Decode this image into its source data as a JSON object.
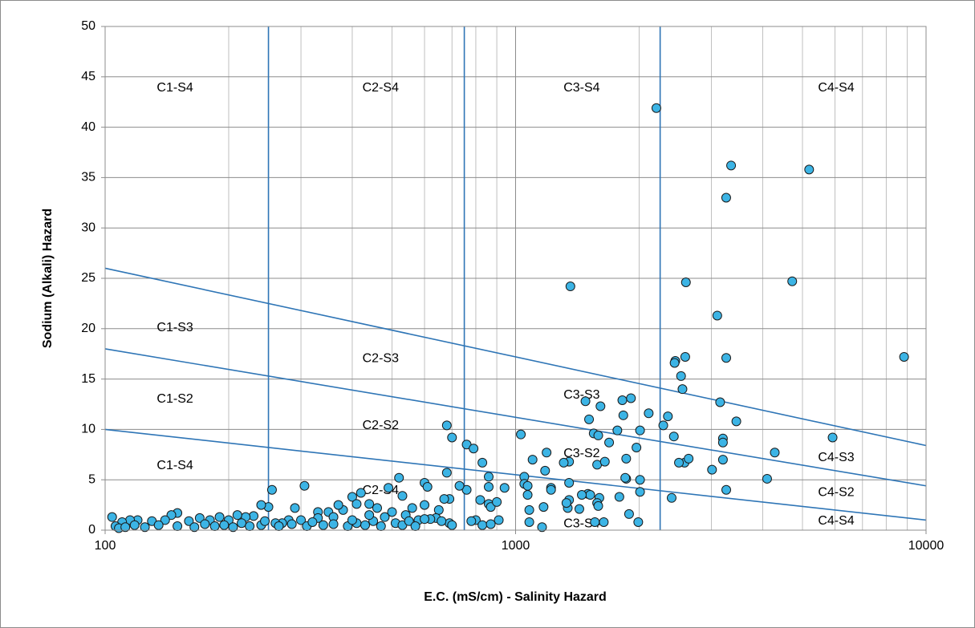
{
  "chart_data": {
    "type": "scatter",
    "x_label": "E.C. (mS/cm) - Salinity Hazard",
    "y_label": "Sodium (Alkali) Hazard",
    "xscale": "log",
    "xlim": [
      100,
      10000
    ],
    "ylim": [
      0,
      50
    ],
    "xticks": [
      100,
      1000,
      10000
    ],
    "x_minor_ticks": [
      200,
      300,
      400,
      500,
      600,
      700,
      800,
      900,
      2000,
      3000,
      4000,
      5000,
      6000,
      7000,
      8000,
      9000
    ],
    "yticks": [
      0,
      5,
      10,
      15,
      20,
      25,
      30,
      35,
      40,
      45,
      50
    ],
    "grid": true,
    "color": "#3cb4e5",
    "line_color": "#2e75b6",
    "vlines": [
      250,
      750,
      2250
    ],
    "boundary_lines": [
      {
        "x": [
          100,
          10000
        ],
        "values": [
          26,
          8.4
        ]
      },
      {
        "x": [
          100,
          10000
        ],
        "values": [
          18,
          4.4
        ]
      },
      {
        "x": [
          100,
          10000
        ],
        "values": [
          10,
          1
        ]
      }
    ],
    "region_labels": [
      {
        "text": "C1-S4",
        "x": 148,
        "y": 43.9
      },
      {
        "text": "C2-S4",
        "x": 469,
        "y": 43.9
      },
      {
        "text": "C3-S4",
        "x": 1449,
        "y": 43.9
      },
      {
        "text": "C4-S4",
        "x": 6040,
        "y": 43.9
      },
      {
        "text": "C1-S3",
        "x": 148,
        "y": 20.1
      },
      {
        "text": "C2-S3",
        "x": 469,
        "y": 17.0
      },
      {
        "text": "C3-S3",
        "x": 1449,
        "y": 13.4
      },
      {
        "text": "C1-S2",
        "x": 148,
        "y": 13.0
      },
      {
        "text": "C2-S2",
        "x": 469,
        "y": 10.35
      },
      {
        "text": "C3-S2",
        "x": 1449,
        "y": 7.6
      },
      {
        "text": "C1-S4",
        "x": 148,
        "y": 6.4
      },
      {
        "text": "C2-S4",
        "x": 469,
        "y": 3.9
      },
      {
        "text": "C3-S4",
        "x": 1449,
        "y": 0.6
      },
      {
        "text": "C4-S3",
        "x": 6040,
        "y": 7.2
      },
      {
        "text": "C4-S2",
        "x": 6040,
        "y": 3.7
      },
      {
        "text": "C4-S4",
        "x": 6040,
        "y": 0.9
      }
    ],
    "x": [
      2203,
      3350,
      5190,
      3259,
      1360,
      2600,
      4720,
      3100,
      3260,
      2590,
      8840,
      2450,
      2440,
      2530,
      2550,
      1480,
      1610,
      1910,
      1820,
      2110,
      2350,
      3150,
      1510,
      2290,
      3450,
      1830,
      1770,
      1550,
      1590,
      2010,
      2430,
      3200,
      3200,
      5920,
      1690,
      1970,
      1030,
      680,
      700,
      760,
      790,
      830,
      1860,
      2580,
      2500,
      2640,
      3200,
      4280,
      1350,
      1310,
      1580,
      1650,
      1190,
      1100,
      680,
      1050,
      3010,
      1860,
      1850,
      2010,
      4100,
      3260,
      2010,
      2400,
      1790,
      1180,
      1220,
      1350,
      1050,
      1070,
      860,
      860,
      940,
      760,
      730,
      1500,
      1520,
      1600,
      1580,
      1590,
      1350,
      1340,
      1430,
      1330,
      1450,
      1070,
      1080,
      1080,
      1170,
      1220,
      910,
      860,
      870,
      820,
      900,
      800,
      780,
      830,
      1160,
      1560,
      1640,
      1890,
      1990,
      870,
      600,
      610,
      690,
      670,
      650,
      640,
      690,
      700,
      520,
      490,
      420,
      400,
      410,
      440,
      460,
      500,
      530,
      540,
      560,
      580,
      600,
      620,
      660,
      600,
      255,
      306,
      250,
      240,
      290,
      330,
      350,
      380,
      360,
      370,
      330,
      300,
      280,
      270,
      260,
      240,
      230,
      220,
      210,
      200,
      190,
      180,
      170,
      160,
      150,
      145,
      140,
      130,
      120,
      115,
      110,
      104,
      106,
      108,
      112,
      118,
      125,
      135,
      150,
      165,
      175,
      185,
      195,
      205,
      215,
      225,
      245,
      265,
      285,
      310,
      320,
      340,
      360,
      390,
      410,
      430,
      450,
      470,
      480,
      510,
      530,
      550,
      570,
      400,
      440
    ],
    "values": [
      41.9,
      36.2,
      35.8,
      33.0,
      24.2,
      24.6,
      24.7,
      21.3,
      17.1,
      17.2,
      17.2,
      16.8,
      16.6,
      15.3,
      14.0,
      12.8,
      12.3,
      13.1,
      12.9,
      11.6,
      11.3,
      12.7,
      11.0,
      10.4,
      10.8,
      11.4,
      9.9,
      9.6,
      9.4,
      9.9,
      9.3,
      9.1,
      8.7,
      9.2,
      8.7,
      8.2,
      9.5,
      10.4,
      9.2,
      8.5,
      8.1,
      6.7,
      7.1,
      6.7,
      6.7,
      7.1,
      7.0,
      7.7,
      6.8,
      6.7,
      6.5,
      6.8,
      7.7,
      7.0,
      5.7,
      5.3,
      6.0,
      5.1,
      5.2,
      5.0,
      5.1,
      4.0,
      3.8,
      3.2,
      3.3,
      5.9,
      4.2,
      4.7,
      4.6,
      4.4,
      4.3,
      5.3,
      4.2,
      4.0,
      4.4,
      3.6,
      3.5,
      3.2,
      2.7,
      2.4,
      3.0,
      2.2,
      2.1,
      2.7,
      3.5,
      3.5,
      2.0,
      0.8,
      2.3,
      4.0,
      1.0,
      2.6,
      2.3,
      3.0,
      2.8,
      1.0,
      0.9,
      0.5,
      0.3,
      0.8,
      0.8,
      1.6,
      0.8,
      0.6,
      4.7,
      4.3,
      3.1,
      3.1,
      2.0,
      1.2,
      0.7,
      0.5,
      5.2,
      4.2,
      3.7,
      3.3,
      2.6,
      2.6,
      2.2,
      1.8,
      3.4,
      1.5,
      2.2,
      1.0,
      2.5,
      1.1,
      0.9,
      1.1,
      4.0,
      4.4,
      2.3,
      2.5,
      2.2,
      1.8,
      1.8,
      2.0,
      1.3,
      2.5,
      1.2,
      1.0,
      1.0,
      0.7,
      0.7,
      0.5,
      1.4,
      1.3,
      1.5,
      1.0,
      1.3,
      1.0,
      1.2,
      0.9,
      1.7,
      1.5,
      1.0,
      0.9,
      1.0,
      1.0,
      0.8,
      1.3,
      0.4,
      0.2,
      0.3,
      0.5,
      0.3,
      0.5,
      0.4,
      0.3,
      0.6,
      0.4,
      0.5,
      0.3,
      0.7,
      0.4,
      0.9,
      0.4,
      0.6,
      0.4,
      0.8,
      0.5,
      0.6,
      0.4,
      0.7,
      0.5,
      0.9,
      0.4,
      1.3,
      0.7,
      0.5,
      0.9,
      0.4,
      1.0,
      1.5
    ]
  }
}
